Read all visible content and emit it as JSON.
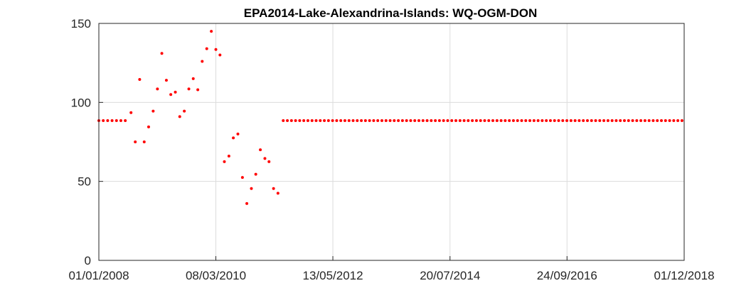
{
  "chart_data": {
    "type": "scatter",
    "title": "EPA2014-Lake-Alexandrina-Islands: WQ-OGM-DON",
    "xlabel": "",
    "ylabel": "",
    "x_scale": "date",
    "xlim": [
      "2008-01-01",
      "2018-12-01"
    ],
    "ylim": [
      0,
      150
    ],
    "x_ticks": [
      "01/01/2008",
      "08/03/2010",
      "13/05/2012",
      "20/07/2014",
      "24/09/2016",
      "01/12/2018"
    ],
    "y_ticks": [
      "0",
      "50",
      "100",
      "150"
    ],
    "grid": true,
    "marker_color": "#ff0000",
    "series": [
      {
        "segments": [
          {
            "from": "2008-01-01",
            "to": "2008-07-01",
            "step_days": 30,
            "value": 88.5
          },
          {
            "from": "2011-06-10",
            "to": "2018-12-01",
            "step_days": 28,
            "value": 88.5
          }
        ],
        "points": [
          {
            "x": "2008-08-07",
            "y": 93.5
          },
          {
            "x": "2008-09-05",
            "y": 75
          },
          {
            "x": "2008-10-05",
            "y": 114.5
          },
          {
            "x": "2008-11-05",
            "y": 75
          },
          {
            "x": "2008-12-05",
            "y": 84.5
          },
          {
            "x": "2009-01-05",
            "y": 94.5
          },
          {
            "x": "2009-02-03",
            "y": 108.5
          },
          {
            "x": "2009-03-05",
            "y": 131
          },
          {
            "x": "2009-04-05",
            "y": 114
          },
          {
            "x": "2009-05-05",
            "y": 105
          },
          {
            "x": "2009-06-05",
            "y": 106.5
          },
          {
            "x": "2009-07-05",
            "y": 91
          },
          {
            "x": "2009-08-05",
            "y": 94.5
          },
          {
            "x": "2009-09-05",
            "y": 108.5
          },
          {
            "x": "2009-10-05",
            "y": 115
          },
          {
            "x": "2009-11-05",
            "y": 108
          },
          {
            "x": "2009-12-05",
            "y": 126
          },
          {
            "x": "2010-01-05",
            "y": 134
          },
          {
            "x": "2010-02-05",
            "y": 145
          },
          {
            "x": "2010-03-08",
            "y": 133.5
          },
          {
            "x": "2010-04-05",
            "y": 130
          },
          {
            "x": "2010-05-05",
            "y": 62.5
          },
          {
            "x": "2010-06-05",
            "y": 66
          },
          {
            "x": "2010-07-05",
            "y": 77.5
          },
          {
            "x": "2010-08-05",
            "y": 80
          },
          {
            "x": "2010-09-05",
            "y": 52.5
          },
          {
            "x": "2010-10-05",
            "y": 36
          },
          {
            "x": "2010-11-05",
            "y": 45.5
          },
          {
            "x": "2010-12-05",
            "y": 54.5
          },
          {
            "x": "2011-01-05",
            "y": 70
          },
          {
            "x": "2011-02-05",
            "y": 64.5
          },
          {
            "x": "2011-03-05",
            "y": 62.5
          },
          {
            "x": "2011-04-05",
            "y": 45.5
          },
          {
            "x": "2011-05-05",
            "y": 42.5
          }
        ]
      }
    ]
  }
}
